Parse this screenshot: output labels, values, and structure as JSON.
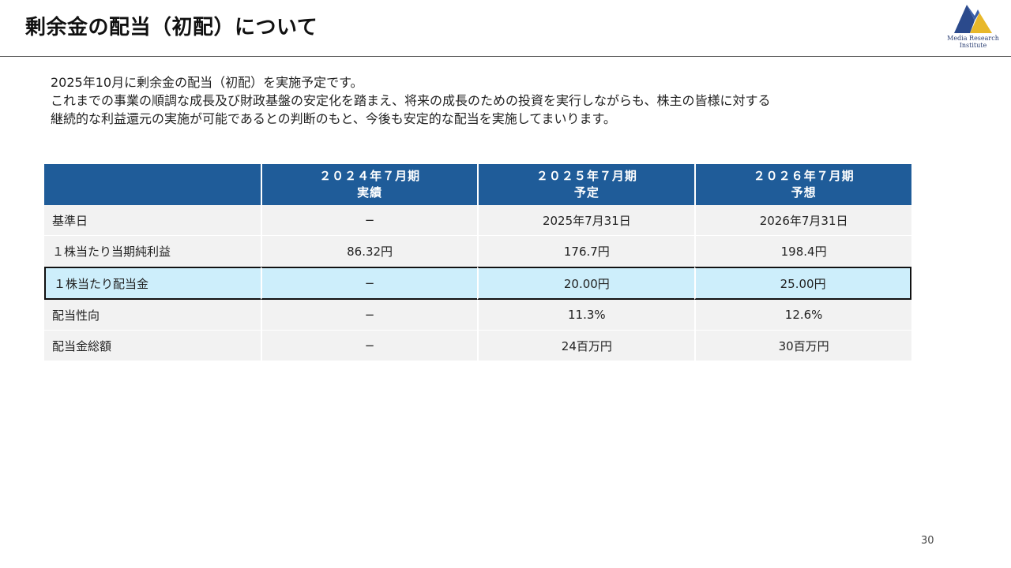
{
  "title": "剰余金の配当（初配）について",
  "logo": {
    "line1": "Media Research",
    "line2": "Institute"
  },
  "intro": {
    "line1": "2025年10月に剰余金の配当（初配）を実施予定です。",
    "line2": "これまでの事業の順調な成長及び財政基盤の安定化を踏まえ、将来の成長のための投資を実行しながらも、株主の皆様に対する",
    "line3": "継続的な利益還元の実施が可能であるとの判断のもと、今後も安定的な配当を実施してまいります。"
  },
  "table": {
    "headers": [
      {
        "top": "",
        "bottom": ""
      },
      {
        "top": "２０２４年７月期",
        "bottom": "実績"
      },
      {
        "top": "２０２５年７月期",
        "bottom": "予定"
      },
      {
        "top": "２０２６年７月期",
        "bottom": "予想"
      }
    ],
    "rows": [
      [
        "基準日",
        "−",
        "2025年7月31日",
        "2026年7月31日"
      ],
      [
        "１株当たり当期純利益",
        "86.32円",
        "176.7円",
        "198.4円"
      ],
      [
        "１株当たり配当金",
        "−",
        "20.00円",
        "25.00円"
      ],
      [
        "配当性向",
        "−",
        "11.3%",
        "12.6%"
      ],
      [
        "配当金総額",
        "−",
        "24百万円",
        "30百万円"
      ]
    ]
  },
  "colors": {
    "header": "#1f5c99",
    "highlight": "#cdeefb",
    "logo_blue": "#2b4a8c",
    "logo_gold": "#e8b82a"
  },
  "page_number": "30"
}
